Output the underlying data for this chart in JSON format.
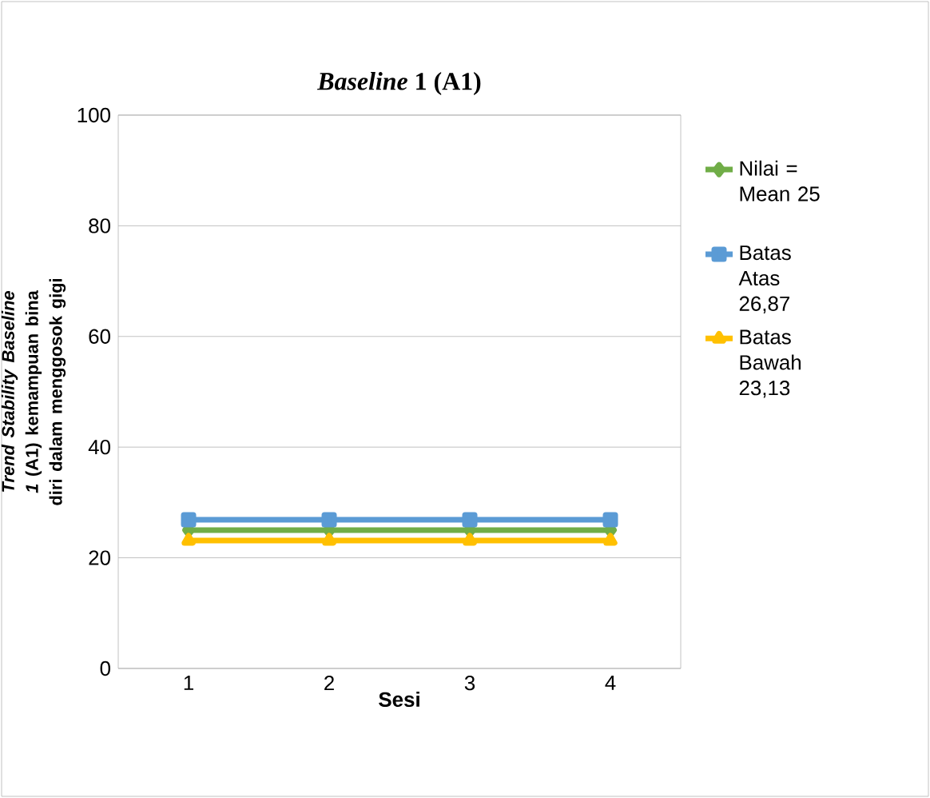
{
  "chart_data": {
    "type": "line",
    "title": "*Baseline* 1 (A1)",
    "xlabel": "Sesi",
    "ylabel": "*Trend Stability Baseline 1* (A1) kemampuan bina diri dalam menggosok gigi",
    "categories": [
      "1",
      "2",
      "3",
      "4"
    ],
    "series": [
      {
        "name": "Nilai = Mean 25",
        "color": "#70ad47",
        "marker": "diamond",
        "values": [
          25,
          25,
          25,
          25
        ]
      },
      {
        "name": "Batas Atas 26,87",
        "color": "#5b9bd5",
        "marker": "square",
        "values": [
          26.87,
          26.87,
          26.87,
          26.87
        ]
      },
      {
        "name": "Batas Bawah 23,13",
        "color": "#ffc000",
        "marker": "triangle",
        "values": [
          23.13,
          23.13,
          23.13,
          23.13
        ]
      }
    ],
    "ylim": [
      0,
      100
    ],
    "yticks": [
      0,
      20,
      40,
      60,
      80,
      100
    ],
    "grid": "y",
    "legend": "right"
  }
}
